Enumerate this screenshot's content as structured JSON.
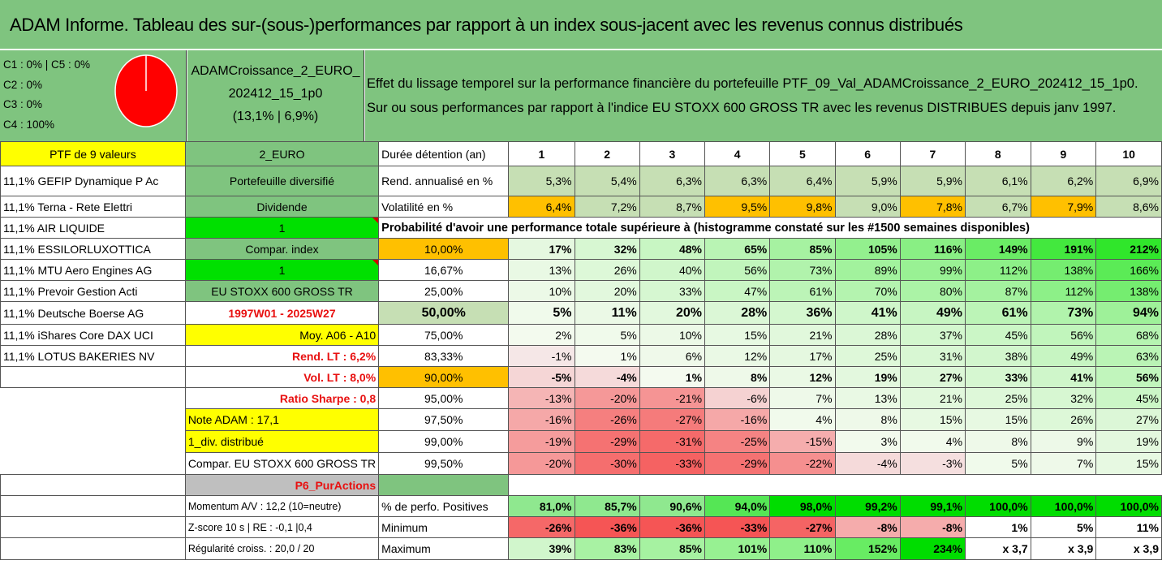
{
  "title": "ADAM Informe. Tableau des sur-(sous-)performances par rapport à un index sous-jacent avec les revenus connus distribués",
  "pie": {
    "legend": [
      "C1 : 0% | C5 : 0%",
      "C2 : 0%",
      "C3 : 0%",
      "C4 : 100%"
    ],
    "color": "#ff0000"
  },
  "portfolio": {
    "name_line1": "ADAMCroissance_2_EURO_",
    "name_line2": "202412_15_1p0",
    "perf": "(13,1% | 6,9%)"
  },
  "effect": {
    "line1": "Effet du lissage temporel sur la performance financière du portefeuille PTF_09_Val_ADAMCroissance_2_EURO_202412_15_1p0.",
    "line2": "Sur ou sous performances par rapport à l'indice EU STOXX 600 GROSS TR avec les revenus DISTRIBUES depuis janv 1997."
  },
  "years": [
    "1",
    "2",
    "3",
    "4",
    "5",
    "6",
    "7",
    "8",
    "9",
    "10"
  ],
  "holdings": [
    "11,1% GEFIP Dynamique P Ac",
    "11,1% Terna - Rete Elettri",
    "11,1% AIR LIQUIDE",
    "11,1% ESSILORLUXOTTICA",
    "11,1% MTU Aero Engines AG",
    "11,1% Prevoir Gestion Acti",
    "11,1% Deutsche Boerse AG",
    "11,1% iShares Core DAX UCI",
    "11,1% LOTUS BAKERIES NV"
  ],
  "col0_header": "PTF de 9 valeurs",
  "info": [
    "2_EURO",
    "Portefeuille diversifié",
    "Dividende",
    "1",
    "Compar. index",
    "1",
    "EU STOXX 600 GROSS TR",
    "1997W01 - 2025W27",
    "Moy. A06 - A10",
    "Rend. LT : 6,2%",
    "Vol. LT : 8,0%",
    "Ratio Sharpe : 0,8",
    "Note ADAM : 17,1",
    "1_div. distribué",
    "Compar. EU STOXX 600 GROSS TR",
    "P6_PurActions",
    "Momentum A/V : 12,2 (10=neutre)",
    "Z-score 10 s | RE : -0,1 |0,4",
    "Régularité croiss. : 20,0 / 20"
  ],
  "labels": {
    "duree": "Durée détention (an)",
    "rend": "Rend. annualisé en %",
    "vol": "Volatilité en %",
    "proba": "Probabilité d'avoir une performance totale supérieure à (histogramme constaté sur les #1500 semaines disponibles)",
    "pos": "% de perfo. Positives",
    "min": "Minimum",
    "max": "Maximum"
  },
  "rend": [
    "5,3%",
    "5,4%",
    "6,3%",
    "6,3%",
    "6,4%",
    "5,9%",
    "5,9%",
    "6,1%",
    "6,2%",
    "6,9%"
  ],
  "vol": [
    "6,4%",
    "7,2%",
    "8,7%",
    "9,5%",
    "9,8%",
    "9,0%",
    "7,8%",
    "6,7%",
    "7,9%",
    "8,6%"
  ],
  "prob_rows": [
    {
      "p": "10,00%",
      "v": [
        "17%",
        "32%",
        "48%",
        "65%",
        "85%",
        "105%",
        "116%",
        "149%",
        "191%",
        "212%"
      ]
    },
    {
      "p": "16,67%",
      "v": [
        "13%",
        "26%",
        "40%",
        "56%",
        "73%",
        "89%",
        "99%",
        "112%",
        "138%",
        "166%"
      ]
    },
    {
      "p": "25,00%",
      "v": [
        "10%",
        "20%",
        "33%",
        "47%",
        "61%",
        "70%",
        "80%",
        "87%",
        "112%",
        "138%"
      ]
    },
    {
      "p": "50,00%",
      "v": [
        "5%",
        "11%",
        "20%",
        "28%",
        "36%",
        "41%",
        "49%",
        "61%",
        "73%",
        "94%"
      ]
    },
    {
      "p": "75,00%",
      "v": [
        "2%",
        "5%",
        "10%",
        "15%",
        "21%",
        "28%",
        "37%",
        "45%",
        "56%",
        "68%"
      ]
    },
    {
      "p": "83,33%",
      "v": [
        "-1%",
        "1%",
        "6%",
        "12%",
        "17%",
        "25%",
        "31%",
        "38%",
        "49%",
        "63%"
      ]
    },
    {
      "p": "90,00%",
      "v": [
        "-5%",
        "-4%",
        "1%",
        "8%",
        "12%",
        "19%",
        "27%",
        "33%",
        "41%",
        "56%"
      ]
    },
    {
      "p": "95,00%",
      "v": [
        "-13%",
        "-20%",
        "-21%",
        "-6%",
        "7%",
        "13%",
        "21%",
        "25%",
        "32%",
        "45%"
      ]
    },
    {
      "p": "97,50%",
      "v": [
        "-16%",
        "-26%",
        "-27%",
        "-16%",
        "4%",
        "8%",
        "15%",
        "15%",
        "26%",
        "27%"
      ]
    },
    {
      "p": "99,00%",
      "v": [
        "-19%",
        "-29%",
        "-31%",
        "-25%",
        "-15%",
        "3%",
        "4%",
        "8%",
        "9%",
        "19%"
      ]
    },
    {
      "p": "99,50%",
      "v": [
        "-20%",
        "-30%",
        "-33%",
        "-29%",
        "-22%",
        "-4%",
        "-3%",
        "5%",
        "7%",
        "15%"
      ]
    }
  ],
  "pos": [
    "81,0%",
    "85,7%",
    "90,6%",
    "94,0%",
    "98,0%",
    "99,2%",
    "99,1%",
    "100,0%",
    "100,0%",
    "100,0%"
  ],
  "min": [
    "-26%",
    "-36%",
    "-36%",
    "-33%",
    "-27%",
    "-8%",
    "-8%",
    "1%",
    "5%",
    "11%"
  ],
  "max": [
    "39%",
    "83%",
    "85%",
    "101%",
    "110%",
    "152%",
    "234%",
    "x 3,7",
    "x 3,9",
    "x 3,9"
  ]
}
